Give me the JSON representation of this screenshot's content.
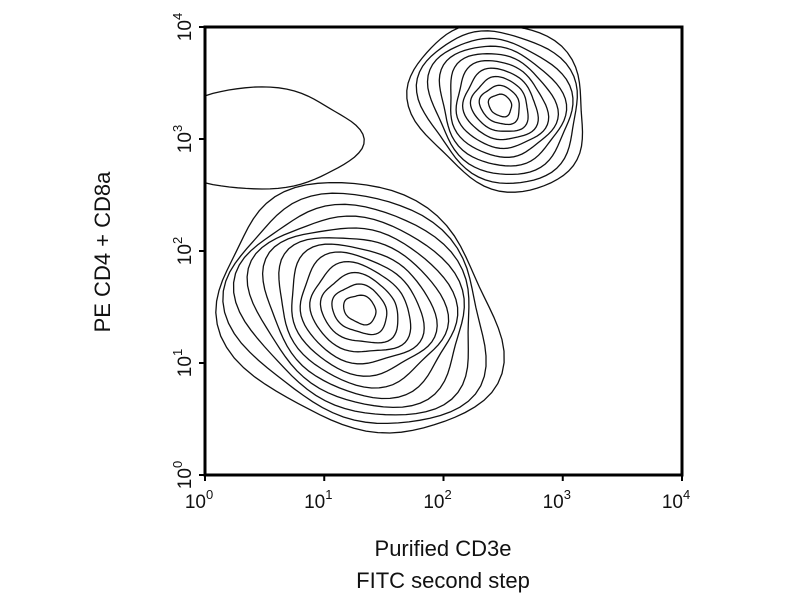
{
  "chart_data": {
    "type": "contour",
    "xlabel": [
      "Purified CD3e",
      "FITC second step"
    ],
    "ylabel": "PE CD4 + CD8a",
    "xscale": "log",
    "yscale": "log",
    "xlim": [
      1,
      10000
    ],
    "ylim": [
      1,
      10000
    ],
    "ticks": [
      {
        "base": "10",
        "exp": "0",
        "value": 1
      },
      {
        "base": "10",
        "exp": "1",
        "value": 10
      },
      {
        "base": "10",
        "exp": "2",
        "value": 100
      },
      {
        "base": "10",
        "exp": "3",
        "value": 1000
      },
      {
        "base": "10",
        "exp": "4",
        "value": 10000
      }
    ],
    "grid": false,
    "populations": [
      {
        "name": "",
        "x": 20,
        "y": 30,
        "spread_x": 0.45,
        "spread_y": 0.55,
        "rotation_deg": 52,
        "levels": 12
      },
      {
        "name": "",
        "x": 300,
        "y": 2000,
        "spread_x": 0.3,
        "spread_y": 0.35,
        "rotation_deg": 40,
        "levels": 10
      },
      {
        "name": "",
        "x": 3,
        "y": 1000,
        "spread_x": 0.35,
        "spread_y": 0.2,
        "rotation_deg": 0,
        "levels": 1
      }
    ],
    "colors": {
      "line": "#111111",
      "frame": "#000000",
      "background": "#ffffff"
    }
  }
}
